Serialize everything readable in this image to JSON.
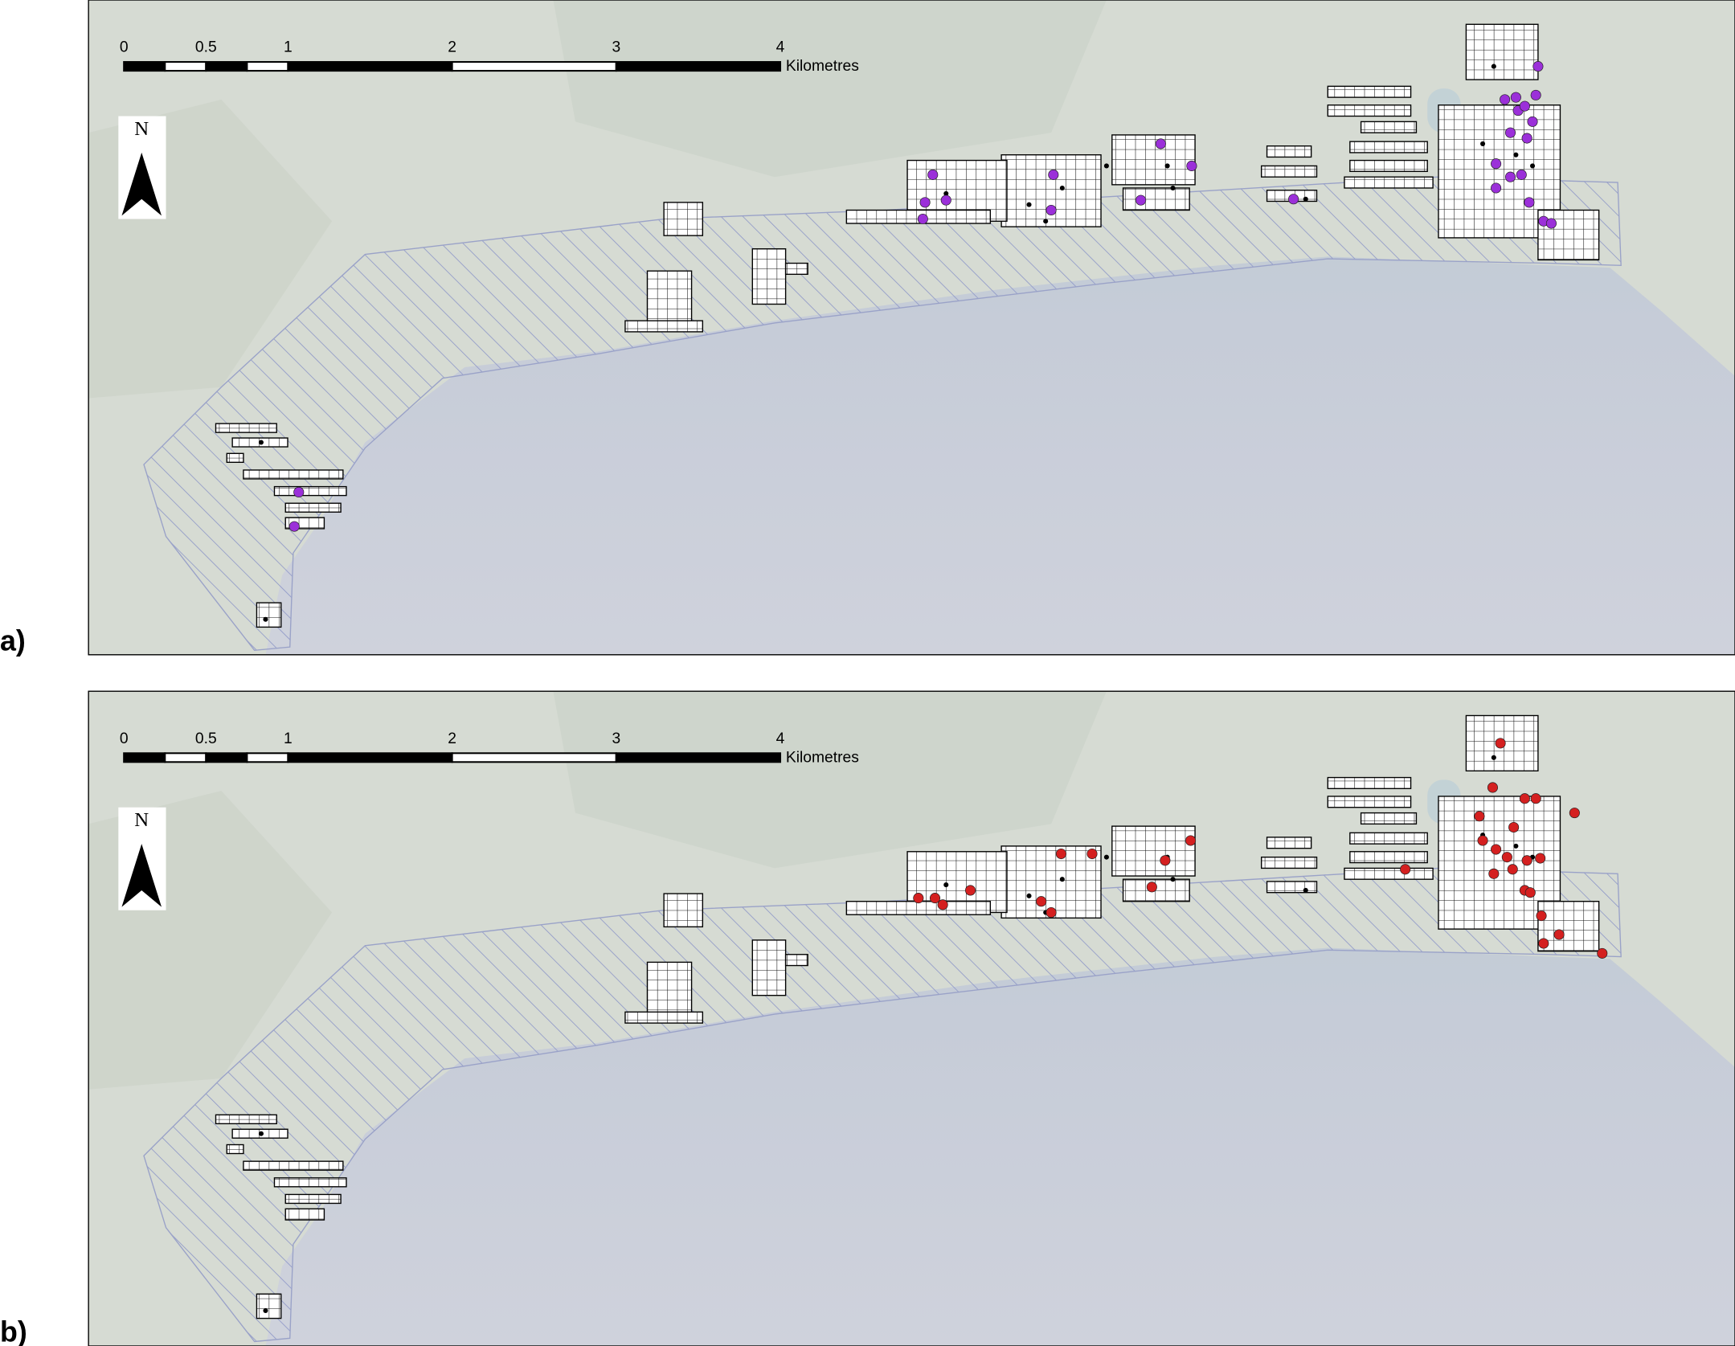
{
  "panels": [
    {
      "label": "a)",
      "scale_bar": {
        "ticks": [
          0,
          0.5,
          1,
          2,
          3,
          4
        ],
        "unit": "Kilometres"
      },
      "north": "N",
      "point_color": "#9b30d9"
    },
    {
      "label": "b)",
      "scale_bar": {
        "ticks": [
          0,
          0.5,
          1,
          2,
          3,
          4
        ],
        "unit": "Kilometres"
      },
      "north": "N",
      "point_color": "#d42020"
    }
  ]
}
